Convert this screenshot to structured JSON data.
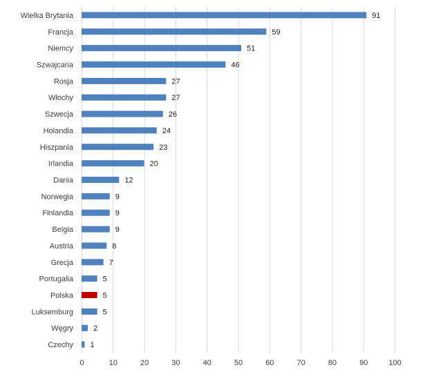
{
  "chart_data": {
    "type": "bar",
    "orientation": "horizontal",
    "categories": [
      "Wielka Brytania",
      "Francja",
      "Niemcy",
      "Szwajcaria",
      "Rosja",
      "Włochy",
      "Szwecja",
      "Holandia",
      "Hiszpania",
      "Irlandia",
      "Dania",
      "Norwegia",
      "Finlandia",
      "Belgia",
      "Austria",
      "Grecja",
      "Portugalia",
      "Polska",
      "Luksemburg",
      "Węgry",
      "Czechy"
    ],
    "values": [
      91,
      59,
      51,
      46,
      27,
      27,
      26,
      24,
      23,
      20,
      12,
      9,
      9,
      9,
      8,
      7,
      5,
      5,
      5,
      2,
      1
    ],
    "value_labels": [
      "91",
      "59",
      "51",
      "46",
      "27",
      "27",
      "26",
      "24",
      "23",
      "20",
      "12",
      "9",
      "9",
      "9",
      "8",
      "7",
      "5",
      "5",
      "5",
      "2",
      "1"
    ],
    "highlight_category": "Polska",
    "xlim": [
      0,
      100
    ],
    "xticks": [
      "0",
      "10",
      "20",
      "30",
      "40",
      "50",
      "60",
      "70",
      "80",
      "90",
      "100"
    ],
    "grid": "vertical",
    "legend": "none",
    "colors": {
      "bar": "#4f81bd",
      "highlight": "#c00000",
      "grid": "#d9d9d9"
    },
    "title": "",
    "xlabel": "",
    "ylabel": ""
  }
}
